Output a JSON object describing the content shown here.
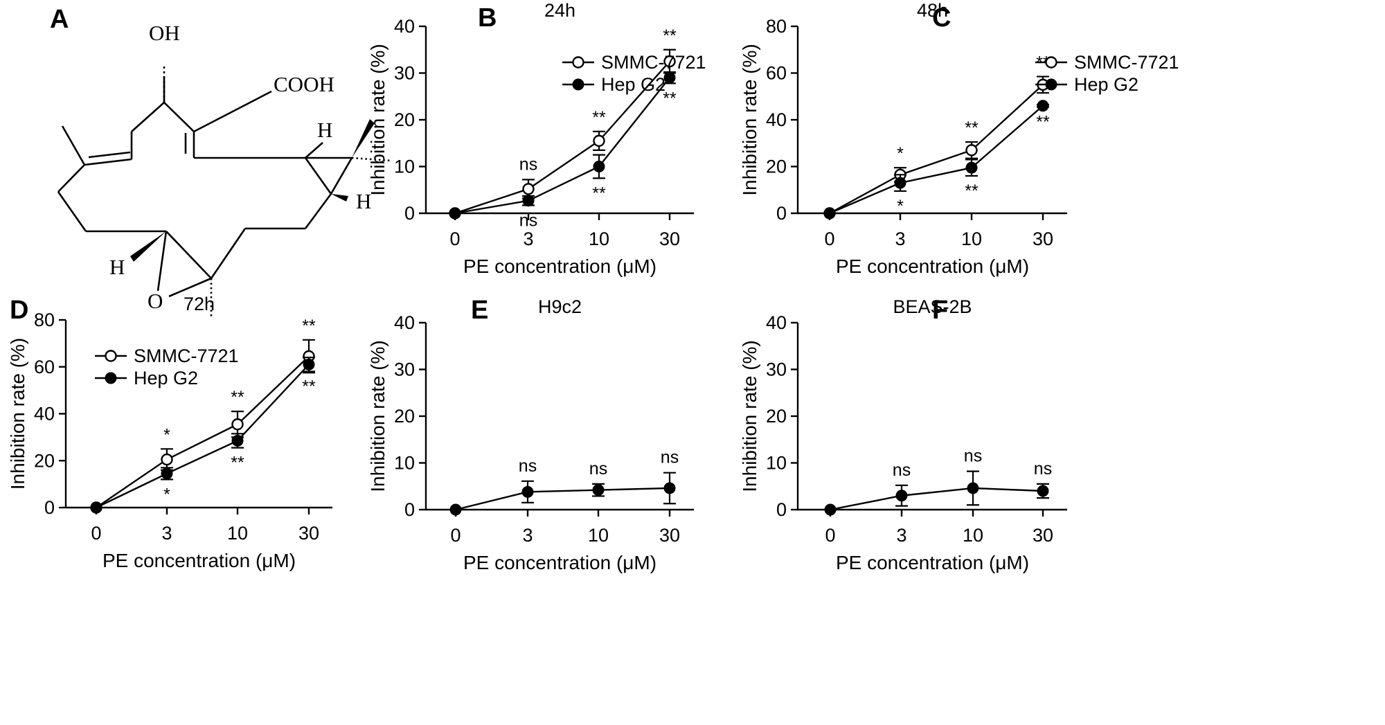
{
  "panels": {
    "A": {
      "label": "A"
    }
  },
  "structure": {
    "labels": {
      "oh": "OH",
      "cooh": "COOH",
      "h1": "H",
      "h2": "H",
      "h3": "H",
      "o": "O"
    }
  },
  "chart_data": [
    {
      "id": "B",
      "panel_label": "B",
      "type": "line",
      "title": "24h",
      "xlabel": "PE concentration (μM)",
      "ylabel": "Inhibition rate (%)",
      "categories": [
        "0",
        "3",
        "10",
        "30"
      ],
      "ylim": [
        0,
        40
      ],
      "yticks": [
        0,
        10,
        20,
        30,
        40
      ],
      "legend": "top-left",
      "series": [
        {
          "name": "SMMC-7721",
          "marker": "open",
          "values": [
            0,
            5.2,
            15.5,
            32.5
          ],
          "errors": [
            0,
            2.0,
            2.0,
            2.5
          ],
          "annotations": [
            "",
            "ns",
            "**",
            "**"
          ],
          "annotation_side": "above"
        },
        {
          "name": "Hep G2",
          "marker": "filled",
          "values": [
            0,
            2.7,
            10.0,
            29.0
          ],
          "errors": [
            0,
            1.0,
            2.5,
            1.2
          ],
          "annotations": [
            "",
            "ns",
            "**",
            "**"
          ],
          "annotation_side": "below"
        }
      ]
    },
    {
      "id": "C",
      "panel_label": "C",
      "type": "line",
      "title": "48h",
      "xlabel": "PE concentration (μM)",
      "ylabel": "Inhibition rate (%)",
      "categories": [
        "0",
        "3",
        "10",
        "30"
      ],
      "ylim": [
        0,
        80
      ],
      "yticks": [
        0,
        20,
        40,
        60,
        80
      ],
      "legend": "top-left",
      "series": [
        {
          "name": "SMMC-7721",
          "marker": "open",
          "values": [
            0,
            16.5,
            27.0,
            55.0
          ],
          "errors": [
            0,
            3.0,
            3.5,
            3.5
          ],
          "annotations": [
            "",
            "*",
            "**",
            "**"
          ],
          "annotation_side": "above"
        },
        {
          "name": "Hep G2",
          "marker": "filled",
          "values": [
            0,
            13.0,
            19.5,
            46.0
          ],
          "errors": [
            0,
            3.5,
            3.5,
            0.5
          ],
          "annotations": [
            "",
            "*",
            "**",
            "**"
          ],
          "annotation_side": "below"
        }
      ]
    },
    {
      "id": "D",
      "panel_label": "D",
      "type": "line",
      "title": "72h",
      "xlabel": "PE concentration (μM)",
      "ylabel": "Inhibition rate (%)",
      "categories": [
        "0",
        "3",
        "10",
        "30"
      ],
      "ylim": [
        0,
        80
      ],
      "yticks": [
        0,
        20,
        40,
        60,
        80
      ],
      "legend": "top-left",
      "series": [
        {
          "name": "SMMC-7721",
          "marker": "open",
          "values": [
            0,
            20.5,
            35.5,
            64.5
          ],
          "errors": [
            0,
            4.5,
            5.5,
            7.0
          ],
          "annotations": [
            "",
            "*",
            "**",
            "**"
          ],
          "annotation_side": "above"
        },
        {
          "name": "Hep G2",
          "marker": "filled",
          "values": [
            0,
            14.5,
            28.5,
            61.0
          ],
          "errors": [
            0,
            2.5,
            3.0,
            3.0
          ],
          "annotations": [
            "",
            "*",
            "**",
            "**"
          ],
          "annotation_side": "below"
        }
      ]
    },
    {
      "id": "E",
      "panel_label": "E",
      "type": "line",
      "title": "H9c2",
      "xlabel": "PE concentration (μM)",
      "ylabel": "Inhibition rate (%)",
      "categories": [
        "0",
        "3",
        "10",
        "30"
      ],
      "ylim": [
        0,
        40
      ],
      "yticks": [
        0,
        10,
        20,
        30,
        40
      ],
      "legend": "none",
      "series": [
        {
          "name": "H9c2",
          "marker": "filled",
          "values": [
            0,
            3.8,
            4.2,
            4.6
          ],
          "errors": [
            0,
            2.3,
            1.3,
            3.3
          ],
          "annotations": [
            "",
            "ns",
            "ns",
            "ns"
          ],
          "annotation_side": "above"
        }
      ]
    },
    {
      "id": "F",
      "panel_label": "F",
      "type": "line",
      "title": "BEAS-2B",
      "xlabel": "PE concentration (μM)",
      "ylabel": "Inhibition rate (%)",
      "categories": [
        "0",
        "3",
        "10",
        "30"
      ],
      "ylim": [
        0,
        40
      ],
      "yticks": [
        0,
        10,
        20,
        30,
        40
      ],
      "legend": "none",
      "series": [
        {
          "name": "BEAS-2B",
          "marker": "filled",
          "values": [
            0,
            3.0,
            4.6,
            4.0
          ],
          "errors": [
            0,
            2.2,
            3.6,
            1.5
          ],
          "annotations": [
            "",
            "ns",
            "ns",
            "ns"
          ],
          "annotation_side": "above"
        }
      ]
    }
  ]
}
